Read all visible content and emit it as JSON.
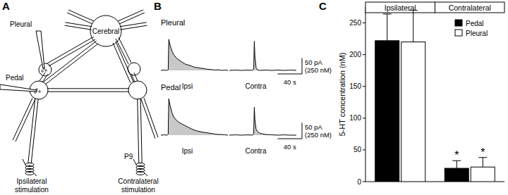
{
  "panel_labels": {
    "a": "A",
    "b": "B",
    "c": "C"
  },
  "panel_a": {
    "cerebral": "Cerebral",
    "pleural": "Pleural",
    "pedal": "Pedal",
    "nerve": "P9",
    "ipsilateral": [
      "Ipsilateral",
      "stimulation"
    ],
    "contralateral": [
      "Contralateral",
      "stimulation"
    ]
  },
  "panel_b": {
    "time_range": [
      0,
      110
    ],
    "rows": [
      {
        "name": "Pleural",
        "traces": [
          {
            "label": "Ipsi",
            "shaded": true,
            "t": [
              0,
              5,
              10,
              12,
              13,
              15,
              18,
              21,
              25,
              30,
              35,
              40,
              45,
              50,
              55,
              60,
              65,
              70,
              75,
              80,
              85,
              90,
              95,
              100,
              105,
              110
            ],
            "current": [
              0,
              1,
              0,
              2,
              98,
              80,
              62,
              50,
              40,
              32,
              26,
              20,
              17,
              14,
              10,
              9,
              7,
              6,
              4,
              3,
              2,
              1,
              2,
              0,
              1,
              0
            ]
          },
          {
            "label": "Contra",
            "shaded": true,
            "t": [
              0,
              10,
              20,
              30,
              38,
              40,
              41,
              42,
              44,
              46,
              50,
              60,
              70,
              80,
              90,
              100,
              110
            ],
            "current": [
              0,
              1,
              0,
              1,
              0,
              4,
              92,
              45,
              8,
              2,
              0,
              1,
              0,
              1,
              0,
              1,
              0
            ]
          }
        ]
      },
      {
        "name": "Pedal",
        "traces": [
          {
            "label": "Ipsi",
            "shaded": true,
            "t": [
              0,
              5,
              10,
              12,
              13,
              15,
              18,
              21,
              25,
              30,
              35,
              40,
              45,
              50,
              55,
              60,
              65,
              70,
              75,
              80,
              85,
              90,
              95,
              100,
              105,
              110
            ],
            "current": [
              0,
              1,
              0,
              3,
              115,
              95,
              72,
              58,
              48,
              40,
              35,
              30,
              25,
              20,
              16,
              13,
              11,
              9,
              8,
              6,
              5,
              3,
              2,
              2,
              1,
              0
            ]
          },
          {
            "label": "Contra",
            "shaded": true,
            "t": [
              0,
              10,
              20,
              30,
              38,
              40,
              41,
              42,
              44,
              47,
              50,
              55,
              60,
              70,
              80,
              90,
              100,
              110
            ],
            "current": [
              0,
              1,
              0,
              1,
              0,
              5,
              88,
              50,
              18,
              10,
              6,
              4,
              2,
              1,
              0,
              1,
              0,
              0
            ]
          }
        ]
      }
    ],
    "scale_bar": {
      "current": 50,
      "current_label": "50 pA",
      "concentration_label": "(250 nM)",
      "time": 40,
      "time_label": "40 s"
    }
  },
  "chart_data": {
    "type": "bar",
    "y_label": "5-HT concentration (nM)",
    "categories": [
      "Ipsilateral",
      "Contralateral"
    ],
    "series": [
      {
        "name": "Pedal",
        "color": "#000000",
        "values": [
          222,
          21
        ],
        "errors": [
          42,
          12
        ]
      },
      {
        "name": "Pleural",
        "color": "#ffffff",
        "values": [
          220,
          23
        ],
        "errors": [
          50,
          15
        ]
      }
    ],
    "annotations": [
      {
        "text": "*",
        "category": 1,
        "series": 0
      },
      {
        "text": "*",
        "category": 1,
        "series": 1
      }
    ],
    "ylim": [
      0,
      275
    ],
    "yticks": [
      0,
      50,
      100,
      150,
      200,
      250
    ],
    "legend": "top-right",
    "grid": false
  }
}
